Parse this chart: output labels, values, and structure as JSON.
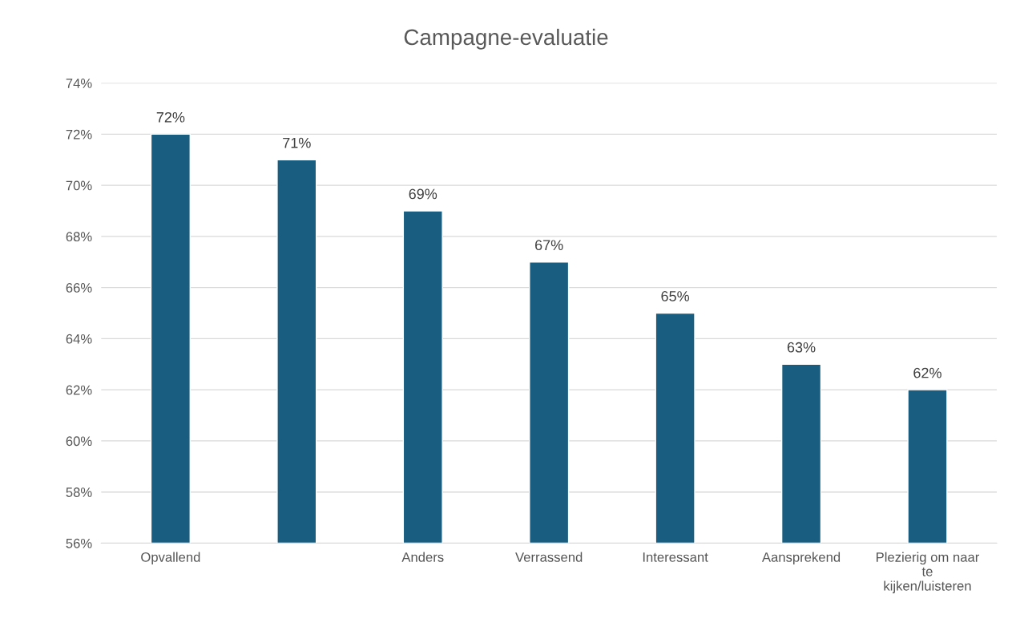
{
  "chart_data": {
    "type": "bar",
    "title": "Campagne-evaluatie",
    "categories": [
      "Opvallend",
      null,
      "Anders",
      "Verrassend",
      "Interessant",
      "Aansprekend",
      "Plezierig om naar\nte\nkijken/luisteren"
    ],
    "values": [
      72,
      71,
      69,
      67,
      65,
      63,
      62
    ],
    "value_labels": [
      "72%",
      "71%",
      "69%",
      "67%",
      "65%",
      "63%",
      "62%"
    ],
    "color": "#195e80",
    "ylim": [
      56,
      74
    ],
    "yticks": [
      {
        "value": 56,
        "label": "56%"
      },
      {
        "value": 58,
        "label": "58%"
      },
      {
        "value": 60,
        "label": "60%"
      },
      {
        "value": 62,
        "label": "62%"
      },
      {
        "value": 64,
        "label": "64%"
      },
      {
        "value": 66,
        "label": "66%"
      },
      {
        "value": 68,
        "label": "68%"
      },
      {
        "value": 70,
        "label": "70%"
      },
      {
        "value": 72,
        "label": "72%"
      },
      {
        "value": 74,
        "label": "74%"
      }
    ],
    "grid": "y",
    "legend": false
  }
}
